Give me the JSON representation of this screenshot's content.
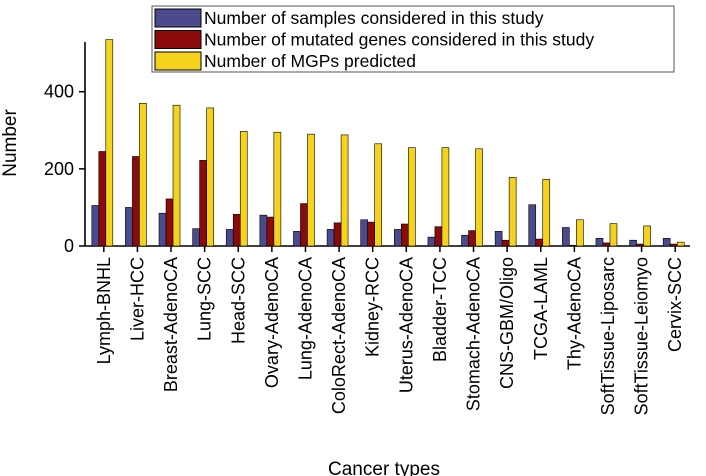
{
  "chart_data": {
    "type": "bar",
    "title": "",
    "xlabel": "Cancer types",
    "ylabel": "Number",
    "ylim": [
      0,
      560
    ],
    "yticks": [
      0,
      200,
      400
    ],
    "grid": false,
    "legend_position": "top-right",
    "categories": [
      "Lymph-BNHL",
      "Liver-HCC",
      "Breast-AdenoCA",
      "Lung-SCC",
      "Head-SCC",
      "Ovary-AdenoCA",
      "Lung-AdenoCA",
      "ColoRect-AdenoCA",
      "Kidney-RCC",
      "Uterus-AdenoCA",
      "Bladder-TCC",
      "Stomach-AdenoCA",
      "CNS-GBM/Oligo",
      "TCGA-LAML",
      "Thy-AdenoCA",
      "SoftTissue-Liposarc",
      "SoftTissue-Leiomyo",
      "Cervix-SCC"
    ],
    "series": [
      {
        "name": "Number of samples considered in this study",
        "color": "#4b4a8c",
        "values": [
          105,
          100,
          85,
          45,
          43,
          80,
          38,
          43,
          68,
          43,
          23,
          28,
          38,
          107,
          48,
          20,
          15,
          20
        ]
      },
      {
        "name": "Number of mutated genes considered in this study",
        "color": "#8b0a0a",
        "values": [
          245,
          232,
          122,
          222,
          82,
          75,
          110,
          60,
          62,
          57,
          50,
          40,
          15,
          18,
          2,
          8,
          5,
          5
        ]
      },
      {
        "name": "Number of MGPs predicted",
        "color": "#f4d21e",
        "values": [
          535,
          370,
          365,
          358,
          297,
          295,
          290,
          288,
          265,
          255,
          255,
          252,
          178,
          173,
          68,
          58,
          52,
          10
        ]
      }
    ]
  }
}
